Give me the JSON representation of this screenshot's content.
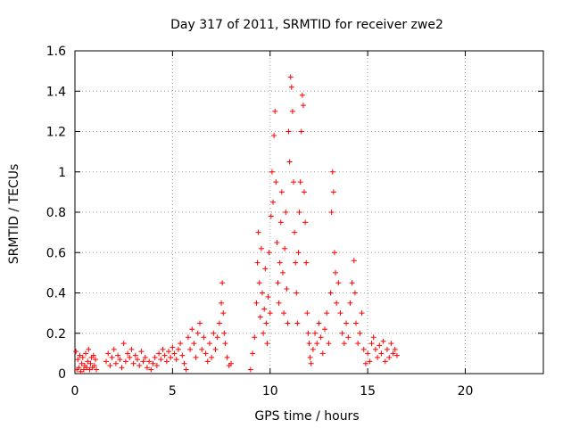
{
  "chart_data": {
    "type": "scatter",
    "title": "Day 317 of 2011, SRMTID for receiver zwe2",
    "xlabel": "GPS time / hours",
    "ylabel": "SRMTID / TECUs",
    "xlim": [
      0,
      24
    ],
    "ylim": [
      0,
      1.6
    ],
    "xticks": [
      "0",
      "5",
      "10",
      "15",
      "20"
    ],
    "yticks": [
      "0",
      "0.2",
      "0.4",
      "0.6",
      "0.8",
      "1",
      "1.2",
      "1.4",
      "1.6"
    ],
    "grid": true,
    "marker": "+",
    "color": "#ff0000",
    "series": [
      {
        "points": [
          [
            0.05,
            0.11
          ],
          [
            0.1,
            0.02
          ],
          [
            0.15,
            0.07
          ],
          [
            0.2,
            0.03
          ],
          [
            0.25,
            0.09
          ],
          [
            0.3,
            0.01
          ],
          [
            0.35,
            0.05
          ],
          [
            0.4,
            0.08
          ],
          [
            0.45,
            0.02
          ],
          [
            0.5,
            0.04
          ],
          [
            0.55,
            0.1
          ],
          [
            0.6,
            0.03
          ],
          [
            0.65,
            0.06
          ],
          [
            0.7,
            0.12
          ],
          [
            0.75,
            0.02
          ],
          [
            0.8,
            0.05
          ],
          [
            0.85,
            0.08
          ],
          [
            0.9,
            0.03
          ],
          [
            0.95,
            0.09
          ],
          [
            1.0,
            0.04
          ],
          [
            1.05,
            0.07
          ],
          [
            1.1,
            0.02
          ],
          [
            1.6,
            0.06
          ],
          [
            1.7,
            0.1
          ],
          [
            1.8,
            0.04
          ],
          [
            1.9,
            0.08
          ],
          [
            2.0,
            0.12
          ],
          [
            2.1,
            0.05
          ],
          [
            2.2,
            0.09
          ],
          [
            2.3,
            0.07
          ],
          [
            2.4,
            0.03
          ],
          [
            2.5,
            0.15
          ],
          [
            2.6,
            0.06
          ],
          [
            2.7,
            0.1
          ],
          [
            2.8,
            0.08
          ],
          [
            2.9,
            0.12
          ],
          [
            3.0,
            0.05
          ],
          [
            3.1,
            0.09
          ],
          [
            3.2,
            0.07
          ],
          [
            3.3,
            0.04
          ],
          [
            3.4,
            0.11
          ],
          [
            3.5,
            0.06
          ],
          [
            3.6,
            0.08
          ],
          [
            3.7,
            0.03
          ],
          [
            3.8,
            0.06
          ],
          [
            3.9,
            0.02
          ],
          [
            4.0,
            0.05
          ],
          [
            4.1,
            0.08
          ],
          [
            4.2,
            0.04
          ],
          [
            4.3,
            0.1
          ],
          [
            4.4,
            0.07
          ],
          [
            4.5,
            0.12
          ],
          [
            4.6,
            0.09
          ],
          [
            4.7,
            0.06
          ],
          [
            4.8,
            0.11
          ],
          [
            4.9,
            0.08
          ],
          [
            5.0,
            0.13
          ],
          [
            5.1,
            0.1
          ],
          [
            5.2,
            0.07
          ],
          [
            5.3,
            0.12
          ],
          [
            5.4,
            0.15
          ],
          [
            5.5,
            0.09
          ],
          [
            5.6,
            0.05
          ],
          [
            5.7,
            0.02
          ],
          [
            5.8,
            0.18
          ],
          [
            5.9,
            0.12
          ],
          [
            6.0,
            0.22
          ],
          [
            6.1,
            0.15
          ],
          [
            6.2,
            0.08
          ],
          [
            6.3,
            0.2
          ],
          [
            6.4,
            0.25
          ],
          [
            6.5,
            0.12
          ],
          [
            6.6,
            0.18
          ],
          [
            6.7,
            0.1
          ],
          [
            6.8,
            0.06
          ],
          [
            6.9,
            0.15
          ],
          [
            7.0,
            0.08
          ],
          [
            7.1,
            0.2
          ],
          [
            7.2,
            0.12
          ],
          [
            7.3,
            0.18
          ],
          [
            7.4,
            0.25
          ],
          [
            7.5,
            0.35
          ],
          [
            7.55,
            0.45
          ],
          [
            7.6,
            0.3
          ],
          [
            7.65,
            0.2
          ],
          [
            7.7,
            0.15
          ],
          [
            7.8,
            0.08
          ],
          [
            7.9,
            0.04
          ],
          [
            8.0,
            0.05
          ],
          [
            9.0,
            0.02
          ],
          [
            9.1,
            0.1
          ],
          [
            9.2,
            0.18
          ],
          [
            9.3,
            0.35
          ],
          [
            9.35,
            0.55
          ],
          [
            9.4,
            0.7
          ],
          [
            9.45,
            0.45
          ],
          [
            9.5,
            0.28
          ],
          [
            9.55,
            0.62
          ],
          [
            9.6,
            0.4
          ],
          [
            9.65,
            0.2
          ],
          [
            9.7,
            0.32
          ],
          [
            9.75,
            0.52
          ],
          [
            9.8,
            0.25
          ],
          [
            9.85,
            0.15
          ],
          [
            9.9,
            0.38
          ],
          [
            9.95,
            0.6
          ],
          [
            10.0,
            0.3
          ],
          [
            10.05,
            0.78
          ],
          [
            10.1,
            1.0
          ],
          [
            10.15,
            0.85
          ],
          [
            10.2,
            1.18
          ],
          [
            10.25,
            1.3
          ],
          [
            10.3,
            0.95
          ],
          [
            10.35,
            0.65
          ],
          [
            10.4,
            0.45
          ],
          [
            10.45,
            0.35
          ],
          [
            10.5,
            0.55
          ],
          [
            10.55,
            0.75
          ],
          [
            10.6,
            0.9
          ],
          [
            10.65,
            0.5
          ],
          [
            10.7,
            0.3
          ],
          [
            10.75,
            0.62
          ],
          [
            10.8,
            0.8
          ],
          [
            10.85,
            0.42
          ],
          [
            10.9,
            0.25
          ],
          [
            10.95,
            1.2
          ],
          [
            11.0,
            1.05
          ],
          [
            11.05,
            1.47
          ],
          [
            11.1,
            1.42
          ],
          [
            11.15,
            1.3
          ],
          [
            11.2,
            0.95
          ],
          [
            11.25,
            0.7
          ],
          [
            11.3,
            0.55
          ],
          [
            11.35,
            0.4
          ],
          [
            11.4,
            0.25
          ],
          [
            11.45,
            0.6
          ],
          [
            11.5,
            0.8
          ],
          [
            11.55,
            0.95
          ],
          [
            11.6,
            1.2
          ],
          [
            11.65,
            1.38
          ],
          [
            11.7,
            1.33
          ],
          [
            11.75,
            0.9
          ],
          [
            11.8,
            0.75
          ],
          [
            11.85,
            0.55
          ],
          [
            11.9,
            0.3
          ],
          [
            11.95,
            0.2
          ],
          [
            12.0,
            0.15
          ],
          [
            12.05,
            0.08
          ],
          [
            12.1,
            0.05
          ],
          [
            12.2,
            0.12
          ],
          [
            12.3,
            0.2
          ],
          [
            12.4,
            0.15
          ],
          [
            12.5,
            0.25
          ],
          [
            12.6,
            0.18
          ],
          [
            12.7,
            0.1
          ],
          [
            12.8,
            0.22
          ],
          [
            12.9,
            0.3
          ],
          [
            13.0,
            0.15
          ],
          [
            13.1,
            0.4
          ],
          [
            13.15,
            0.8
          ],
          [
            13.2,
            1.0
          ],
          [
            13.25,
            0.9
          ],
          [
            13.3,
            0.6
          ],
          [
            13.35,
            0.5
          ],
          [
            13.4,
            0.35
          ],
          [
            13.5,
            0.45
          ],
          [
            13.6,
            0.3
          ],
          [
            13.7,
            0.2
          ],
          [
            13.8,
            0.15
          ],
          [
            13.9,
            0.25
          ],
          [
            14.0,
            0.18
          ],
          [
            14.1,
            0.35
          ],
          [
            14.2,
            0.45
          ],
          [
            14.3,
            0.56
          ],
          [
            14.35,
            0.4
          ],
          [
            14.4,
            0.25
          ],
          [
            14.5,
            0.15
          ],
          [
            14.6,
            0.2
          ],
          [
            14.7,
            0.3
          ],
          [
            14.8,
            0.12
          ],
          [
            14.9,
            0.05
          ],
          [
            15.0,
            0.1
          ],
          [
            15.1,
            0.06
          ],
          [
            15.2,
            0.15
          ],
          [
            15.3,
            0.18
          ],
          [
            15.4,
            0.12
          ],
          [
            15.5,
            0.08
          ],
          [
            15.6,
            0.14
          ],
          [
            15.7,
            0.1
          ],
          [
            15.8,
            0.16
          ],
          [
            15.9,
            0.06
          ],
          [
            16.0,
            0.12
          ],
          [
            16.1,
            0.08
          ],
          [
            16.2,
            0.15
          ],
          [
            16.3,
            0.1
          ],
          [
            16.4,
            0.12
          ],
          [
            16.5,
            0.09
          ]
        ]
      }
    ]
  }
}
